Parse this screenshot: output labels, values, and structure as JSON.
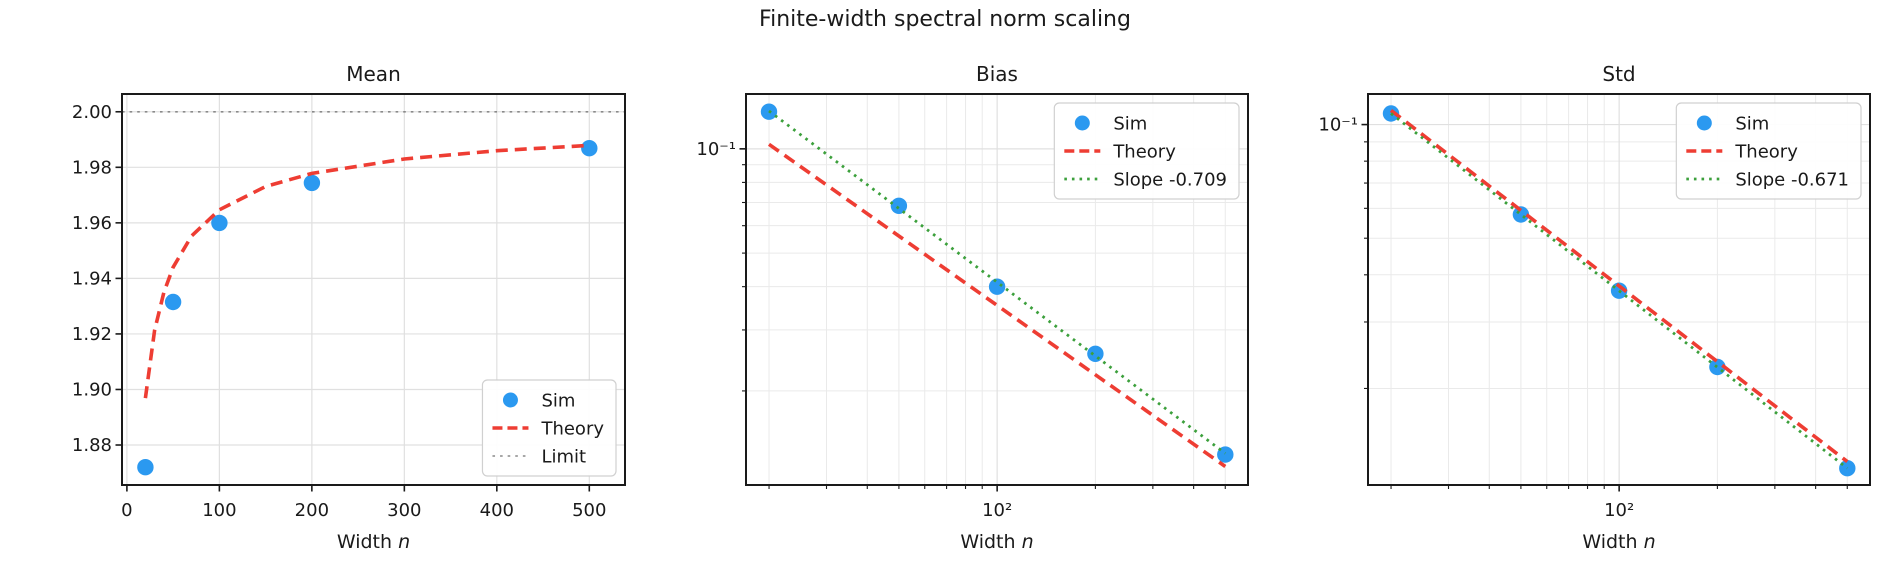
{
  "title": "Finite-width spectral norm scaling",
  "colors": {
    "sim": "#2b99f0",
    "theory": "#ee3d33",
    "slope": "#3ca03c",
    "limit": "#8a8a8a",
    "grid_major": "#e0e0e0",
    "grid_minor": "#eaeaea",
    "spine": "#1a1a1a",
    "text": "#1a1a1a",
    "legend_border": "#d0d0d0"
  },
  "chart_data": [
    {
      "type": "scatter",
      "title": "Mean",
      "xlabel": {
        "text": "Width ",
        "var": "n"
      },
      "xscale": "linear",
      "yscale": "linear",
      "xlim": [
        -5.3,
        538.6
      ],
      "ylim": [
        1.8656,
        2.0064
      ],
      "xticks": [
        {
          "v": 0,
          "label": "0"
        },
        {
          "v": 100,
          "label": "100"
        },
        {
          "v": 200,
          "label": "200"
        },
        {
          "v": 300,
          "label": "300"
        },
        {
          "v": 400,
          "label": "400"
        },
        {
          "v": 500,
          "label": "500"
        }
      ],
      "yticks": [
        {
          "v": 1.88,
          "label": "1.88"
        },
        {
          "v": 1.9,
          "label": "1.90"
        },
        {
          "v": 1.92,
          "label": "1.92"
        },
        {
          "v": 1.94,
          "label": "1.94"
        },
        {
          "v": 1.96,
          "label": "1.96"
        },
        {
          "v": 1.98,
          "label": "1.98"
        },
        {
          "v": 2.0,
          "label": "2.00"
        }
      ],
      "xminor": [],
      "yminor": [],
      "legend_loc": "lower right",
      "series": [
        {
          "name": "Sim",
          "kind": "scatter",
          "colorKey": "sim",
          "points": [
            [
              20,
              1.872
            ],
            [
              50,
              1.9315
            ],
            [
              100,
              1.96
            ],
            [
              200,
              1.9744
            ],
            [
              500,
              1.9869
            ]
          ]
        },
        {
          "name": "Theory",
          "kind": "line",
          "dash": "dashed",
          "colorKey": "theory",
          "width": 3.6,
          "points": [
            [
              20,
              1.8969
            ],
            [
              30,
              1.9213
            ],
            [
              40,
              1.935
            ],
            [
              50,
              1.944
            ],
            [
              70,
              1.9553
            ],
            [
              100,
              1.9647
            ],
            [
              150,
              1.9731
            ],
            [
              200,
              1.9778
            ],
            [
              300,
              1.983
            ],
            [
              400,
              1.986
            ],
            [
              500,
              1.9879
            ]
          ]
        },
        {
          "name": "Limit",
          "kind": "hline",
          "dash": "dotted",
          "colorKey": "limit",
          "width": 1.6,
          "y": 2.0
        }
      ]
    },
    {
      "type": "scatter",
      "title": "Bias",
      "xlabel": {
        "text": "Width ",
        "var": "n"
      },
      "xscale": "log",
      "yscale": "log",
      "xlim": [
        17.0,
        587.0
      ],
      "ylim": [
        0.0107,
        0.144
      ],
      "xticks": [
        {
          "v": 100,
          "label": "10²"
        }
      ],
      "yticks": [
        {
          "v": 0.1,
          "label": "10⁻¹"
        }
      ],
      "xminor": [
        20,
        30,
        40,
        50,
        60,
        70,
        80,
        90,
        200,
        300,
        400,
        500
      ],
      "yminor": [
        0.02,
        0.03,
        0.04,
        0.05,
        0.06,
        0.07,
        0.08,
        0.09
      ],
      "legend_loc": "upper right",
      "series": [
        {
          "name": "Sim",
          "kind": "scatter",
          "colorKey": "sim",
          "points": [
            [
              20,
              0.128
            ],
            [
              50,
              0.0685
            ],
            [
              100,
              0.04
            ],
            [
              200,
              0.0256
            ],
            [
              500,
              0.0131
            ]
          ]
        },
        {
          "name": "Theory",
          "kind": "line",
          "dash": "dashed",
          "colorKey": "theory",
          "width": 3.6,
          "points": [
            [
              20,
              0.1031
            ],
            [
              500,
              0.0121
            ]
          ]
        },
        {
          "name": "Slope -0.709",
          "kind": "line",
          "dash": "dotted",
          "colorKey": "slope",
          "width": 2.8,
          "points": [
            [
              20,
              0.1286
            ],
            [
              500,
              0.0132
            ]
          ]
        }
      ]
    },
    {
      "type": "scatter",
      "title": "Std",
      "xlabel": {
        "text": "Width ",
        "var": "n"
      },
      "xscale": "log",
      "yscale": "log",
      "xlim": [
        17.0,
        587.0
      ],
      "ylim": [
        0.0111,
        0.1205
      ],
      "xticks": [
        {
          "v": 100,
          "label": "10²"
        }
      ],
      "yticks": [
        {
          "v": 0.1,
          "label": "10⁻¹"
        }
      ],
      "xminor": [
        20,
        30,
        40,
        50,
        60,
        70,
        80,
        90,
        200,
        300,
        400,
        500
      ],
      "yminor": [
        0.02,
        0.03,
        0.04,
        0.05,
        0.06,
        0.07,
        0.08,
        0.09
      ],
      "legend_loc": "upper right",
      "series": [
        {
          "name": "Sim",
          "kind": "scatter",
          "colorKey": "sim",
          "points": [
            [
              20,
              0.107
            ],
            [
              50,
              0.0578
            ],
            [
              100,
              0.0363
            ],
            [
              200,
              0.0228
            ],
            [
              500,
              0.0123
            ]
          ]
        },
        {
          "name": "Theory",
          "kind": "line",
          "dash": "dashed",
          "colorKey": "theory",
          "width": 3.6,
          "points": [
            [
              20,
              0.109
            ],
            [
              500,
              0.0128
            ]
          ]
        },
        {
          "name": "Slope -0.671",
          "kind": "line",
          "dash": "dotted",
          "colorKey": "slope",
          "width": 2.8,
          "points": [
            [
              20,
              0.107
            ],
            [
              500,
              0.0123
            ]
          ]
        }
      ]
    }
  ]
}
